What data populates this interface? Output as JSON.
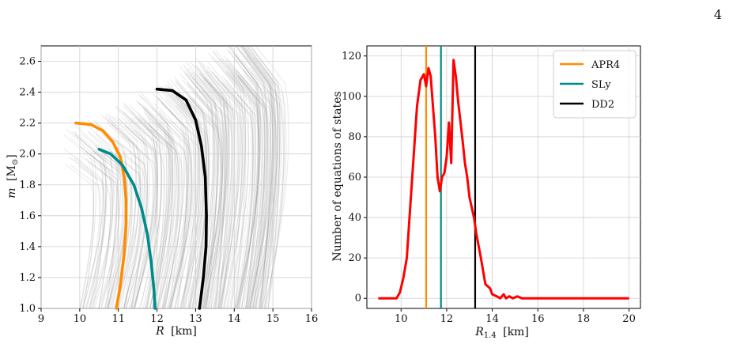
{
  "page_number": "4",
  "chart_data": [
    {
      "type": "line",
      "panel": "left",
      "xlabel_main": "R",
      "xlabel_unit": "[km]",
      "ylabel_main": "m",
      "ylabel_unit": "[M",
      "ylabel_sub": "⊙",
      "ylabel_close": "]",
      "xlim": [
        9,
        16
      ],
      "ylim": [
        1.0,
        2.7
      ],
      "xticks": [
        9,
        10,
        11,
        12,
        13,
        14,
        15,
        16
      ],
      "yticks": [
        1.0,
        1.2,
        1.4,
        1.6,
        1.8,
        2.0,
        2.2,
        2.4,
        2.6
      ],
      "xtick_labels": [
        "9",
        "10",
        "11",
        "12",
        "13",
        "14",
        "15",
        "16"
      ],
      "ytick_labels": [
        "1.0",
        "1.2",
        "1.4",
        "1.6",
        "1.8",
        "2.0",
        "2.2",
        "2.4",
        "2.6"
      ],
      "grid": true,
      "background_band": {
        "r_min": 9.3,
        "r_max": 14.9,
        "m_max_low": 1.9,
        "m_max_high": 2.7,
        "color": "#808080"
      },
      "series": [
        {
          "name": "APR4",
          "color": "#ff8c00",
          "x": [
            9.9,
            10.3,
            10.6,
            10.85,
            11.05,
            11.15,
            11.2,
            11.2,
            11.15,
            11.05,
            10.95
          ],
          "y": [
            2.2,
            2.19,
            2.15,
            2.08,
            1.98,
            1.85,
            1.7,
            1.55,
            1.35,
            1.15,
            1.0
          ]
        },
        {
          "name": "SLy",
          "color": "#008b8b",
          "x": [
            10.5,
            10.8,
            11.1,
            11.4,
            11.6,
            11.75,
            11.85,
            11.92,
            11.95
          ],
          "y": [
            2.03,
            2.0,
            1.93,
            1.8,
            1.65,
            1.48,
            1.3,
            1.12,
            1.0
          ]
        },
        {
          "name": "DD2",
          "color": "#000000",
          "x": [
            12.0,
            12.4,
            12.75,
            13.0,
            13.15,
            13.25,
            13.28,
            13.27,
            13.2,
            13.1
          ],
          "y": [
            2.42,
            2.41,
            2.35,
            2.22,
            2.05,
            1.85,
            1.6,
            1.4,
            1.2,
            1.0
          ]
        }
      ]
    },
    {
      "type": "line",
      "panel": "right",
      "xlabel_main": "R",
      "xlabel_sub": "1.4",
      "xlabel_unit": "[km]",
      "ylabel": "Number of equations of states",
      "xlim": [
        8.5,
        20.5
      ],
      "ylim": [
        -5,
        125
      ],
      "xticks": [
        10,
        12,
        14,
        16,
        18,
        20
      ],
      "yticks": [
        0,
        20,
        40,
        60,
        80,
        100,
        120
      ],
      "xtick_labels": [
        "10",
        "12",
        "14",
        "16",
        "18",
        "20"
      ],
      "ytick_labels": [
        "0",
        "20",
        "40",
        "60",
        "80",
        "100",
        "120"
      ],
      "grid": true,
      "legend_position": "top-right",
      "vlines": [
        {
          "name": "APR4",
          "x": 11.1,
          "color": "#ff8c00"
        },
        {
          "name": "SLy",
          "x": 11.75,
          "color": "#008b8b"
        },
        {
          "name": "DD2",
          "x": 13.25,
          "color": "#000000"
        }
      ],
      "histogram": {
        "color": "#ff0000",
        "x": [
          9.0,
          9.5,
          9.8,
          9.95,
          10.1,
          10.25,
          10.4,
          10.55,
          10.7,
          10.85,
          11.0,
          11.1,
          11.2,
          11.3,
          11.4,
          11.5,
          11.6,
          11.7,
          11.8,
          11.9,
          12.0,
          12.1,
          12.2,
          12.3,
          12.4,
          12.5,
          12.6,
          12.7,
          12.8,
          12.9,
          13.0,
          13.1,
          13.2,
          13.3,
          13.5,
          13.7,
          13.9,
          14.0,
          14.2,
          14.35,
          14.5,
          14.6,
          14.75,
          14.9,
          15.1,
          15.3,
          16.0,
          17.0,
          18.0,
          19.0,
          20.0
        ],
        "y": [
          0,
          0,
          0,
          3,
          10,
          20,
          45,
          70,
          95,
          108,
          111,
          105,
          114,
          110,
          95,
          80,
          60,
          53,
          60,
          62,
          70,
          87,
          67,
          118,
          110,
          98,
          88,
          78,
          67,
          60,
          50,
          45,
          40,
          32,
          20,
          7,
          5,
          2,
          1,
          0,
          2,
          0,
          1,
          0,
          1,
          0,
          0,
          0,
          0,
          0,
          0
        ]
      }
    }
  ]
}
